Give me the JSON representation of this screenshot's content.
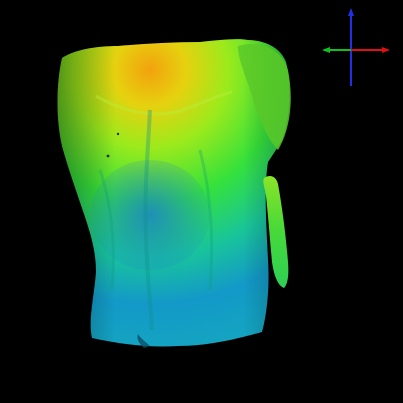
{
  "viewport": {
    "background": "#000000"
  },
  "model": {
    "type": "3d-torso-surface-scan",
    "colormap": [
      "#F2A20E",
      "#E6D10F",
      "#9BEA1C",
      "#35E13B",
      "#19C49A",
      "#1399C8",
      "#14A9BE"
    ],
    "shading": "height-map",
    "appendage": "arm-fragment-right"
  },
  "orientation_widget": {
    "axes": [
      {
        "name": "x",
        "color": "#E01010"
      },
      {
        "name": "y",
        "color": "#10C020"
      },
      {
        "name": "z",
        "color": "#2030E8"
      }
    ]
  }
}
